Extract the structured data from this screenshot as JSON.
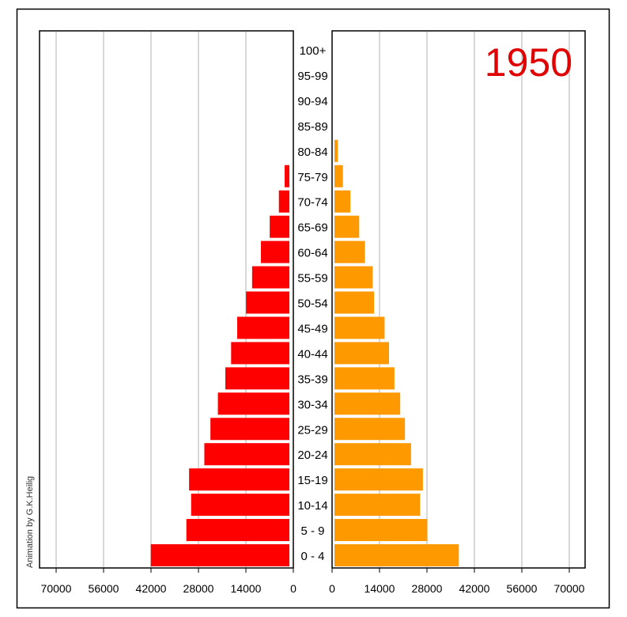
{
  "chart_data": {
    "type": "bar",
    "subtype": "population-pyramid",
    "year_label": "1950",
    "credit": "Animation by G.K.Heilig",
    "categories": [
      "100+",
      "95-99",
      "90-94",
      "85-89",
      "80-84",
      "75-79",
      "70-74",
      "65-69",
      "60-64",
      "55-59",
      "50-54",
      "45-49",
      "40-44",
      "35-39",
      "30-34",
      "25-29",
      "20-24",
      "15-19",
      "10-14",
      "5 - 9",
      "0 - 4"
    ],
    "series": [
      {
        "name": "left",
        "side": "left",
        "color": "#ff0000",
        "values": [
          0,
          0,
          0,
          0,
          0,
          1400,
          3100,
          5800,
          8400,
          11000,
          12800,
          15400,
          17200,
          18900,
          21100,
          23300,
          25100,
          29600,
          29000,
          30400,
          40900
        ]
      },
      {
        "name": "right",
        "side": "right",
        "color": "#ff9900",
        "values": [
          0,
          0,
          0,
          0,
          1000,
          2500,
          4700,
          7300,
          9000,
          11300,
          11700,
          14800,
          16100,
          17700,
          19400,
          20800,
          22600,
          26100,
          25300,
          27400,
          36700
        ]
      }
    ],
    "xlim": [
      0,
      70000
    ],
    "left_ticks": [
      "70000",
      "56000",
      "42000",
      "28000",
      "14000",
      "0"
    ],
    "right_ticks": [
      "0",
      "14000",
      "28000",
      "42000",
      "56000",
      "70000"
    ],
    "tick_values": [
      0,
      14000,
      28000,
      42000,
      56000,
      70000
    ],
    "grid": true,
    "year_color": "#e00000"
  }
}
